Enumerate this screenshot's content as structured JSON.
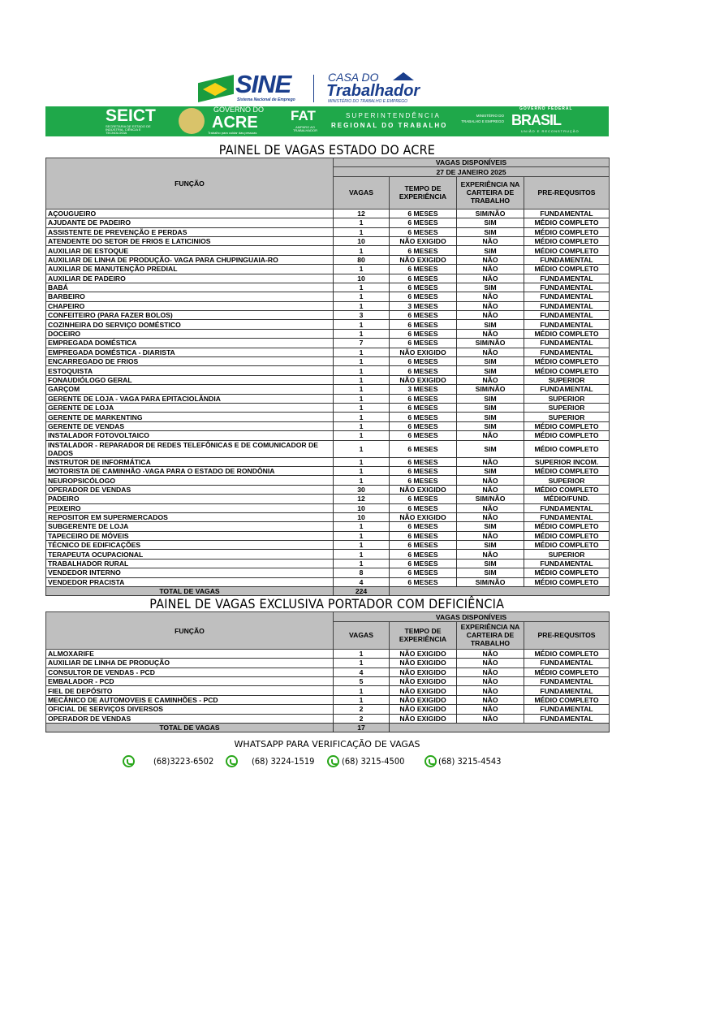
{
  "header": {
    "sine": "SINE",
    "sine_sub": "Sistema Nacional de Emprego",
    "casa": "CASA DO",
    "trabalhador": "Trabalhador",
    "ministerio": "MINISTÉRIO DO TRABALHO E EMPREGO",
    "banner": {
      "seict": "SEICT",
      "seict_sub": "SECRETARIA DE ESTADO DE INDÚSTRIA, CIÊNCIA E TECNOLOGIA",
      "governo": "GOVERNO DO",
      "acre": "ACRE",
      "acre_sub": "Trabalho para cuidar das pessoas",
      "fat": "FAT",
      "fat_sub": "AMPARO AO TRABALHADOR",
      "sup1": "SUPERINTENDÊNCIA",
      "sup2": "REGIONAL DO TRABALHO",
      "mte": "MINISTÉRIO DO TRABALHO E EMPREGO",
      "gov_fed": "GOVERNO FEDERAL",
      "brasil": "BRASIL",
      "brasil_sub": "UNIÃO E RECONSTRUÇÃO"
    },
    "colors": {
      "green": "#1fa84a",
      "blue": "#1a3e8c",
      "header_gray": "#bfbfbf"
    }
  },
  "table1": {
    "title": "PAINEL DE VAGAS ESTADO DO ACRE",
    "vagas_disp": "VAGAS DISPONÍVEIS",
    "date": "27 DE JANEIRO 2025",
    "columns": [
      "FUNÇÃO",
      "VAGAS",
      "TEMPO DE EXPERIÊNCIA",
      "EXPERIÊNCIA NA CARTEIRA DE TRABALHO",
      "PRE-REQUSITOS"
    ],
    "rows": [
      [
        "AÇOUGUEIRO",
        "12",
        "6 MESES",
        "SIM/NÃO",
        "FUNDAMENTAL"
      ],
      [
        "AJUDANTE DE PADEIRO",
        "1",
        "6 MESES",
        "SIM",
        "MÉDIO COMPLETO"
      ],
      [
        "ASSISTENTE DE PREVENÇÃO E PERDAS",
        "1",
        "6 MESES",
        "SIM",
        "MÉDIO COMPLETO"
      ],
      [
        "ATENDENTE DO SETOR DE FRIOS E LATICINIOS",
        "10",
        "NÃO EXIGIDO",
        "NÃO",
        "MÉDIO COMPLETO"
      ],
      [
        "AUXILIAR DE ESTOQUE",
        "1",
        "6 MESES",
        "SIM",
        "MÉDIO COMPLETO"
      ],
      [
        "AUXILIAR DE LINHA DE PRODUÇÃO- VAGA PARA CHUPINGUAIA-RO",
        "80",
        "NÃO EXIGIDO",
        "NÃO",
        "FUNDAMENTAL"
      ],
      [
        "AUXILIAR DE MANUTENÇÃO PREDIAL",
        "1",
        "6 MESES",
        "NÃO",
        "MÉDIO COMPLETO"
      ],
      [
        "AUXILIAR DE PADEIRO",
        "10",
        "6 MESES",
        "NÃO",
        "FUNDAMENTAL"
      ],
      [
        "BABÁ",
        "1",
        "6 MESES",
        "SIM",
        "FUNDAMENTAL"
      ],
      [
        "BARBEIRO",
        "1",
        "6 MESES",
        "NÃO",
        "FUNDAMENTAL"
      ],
      [
        "CHAPEIRO",
        "1",
        "3 MESES",
        "NÃO",
        "FUNDAMENTAL"
      ],
      [
        "CONFEITEIRO (PARA FAZER BOLOS)",
        "3",
        "6 MESES",
        "NÃO",
        "FUNDAMENTAL"
      ],
      [
        "COZINHEIRA DO SERVIÇO DOMÉSTICO",
        "1",
        "6 MESES",
        "SIM",
        "FUNDAMENTAL"
      ],
      [
        "DOCEIRO",
        "1",
        "6 MESES",
        "NÃO",
        "MÉDIO COMPLETO"
      ],
      [
        "EMPREGADA DOMÉSTICA",
        "7",
        "6 MESES",
        "SIM/NÃO",
        "FUNDAMENTAL"
      ],
      [
        "EMPREGADA DOMÉSTICA - DIARISTA",
        "1",
        "NÃO EXIGIDO",
        "NÃO",
        "FUNDAMENTAL"
      ],
      [
        "ENCARREGADO DE FRIOS",
        "1",
        "6 MESES",
        "SIM",
        "MÉDIO COMPLETO"
      ],
      [
        "ESTOQUISTA",
        "1",
        "6 MESES",
        "SIM",
        "MÉDIO COMPLETO"
      ],
      [
        "FONAUDIÓLOGO GERAL",
        "1",
        "NÃO EXIGIDO",
        "NÃO",
        "SUPERIOR"
      ],
      [
        "GARÇOM",
        "1",
        "3 MESES",
        "SIM/NÃO",
        "FUNDAMENTAL"
      ],
      [
        "GERENTE DE LOJA - VAGA PARA EPITACIOLÂNDIA",
        "1",
        "6 MESES",
        "SIM",
        "SUPERIOR"
      ],
      [
        "GERENTE DE LOJA",
        "1",
        "6 MESES",
        "SIM",
        "SUPERIOR"
      ],
      [
        "GERENTE DE MARKENTING",
        "1",
        "6 MESES",
        "SIM",
        "SUPERIOR"
      ],
      [
        "GERENTE DE VENDAS",
        "1",
        "6 MESES",
        "SIM",
        "MÉDIO COMPLETO"
      ],
      [
        "INSTALADOR FOTOVOLTAICO",
        "1",
        "6 MESES",
        "NÃO",
        "MÉDIO COMPLETO"
      ],
      [
        "INSTALADOR - REPARADOR DE REDES TELEFÔNICAS E DE COMUNICADOR DE DADOS",
        "1",
        "6 MESES",
        "SIM",
        "MÉDIO COMPLETO"
      ],
      [
        "INSTRUTOR DE INFORMÁTICA",
        "1",
        "6 MESES",
        "NÃO",
        "SUPERIOR INCOM."
      ],
      [
        "MOTORISTA DE CAMINHÃO -VAGA PARA O ESTADO DE RONDÔNIA",
        "1",
        "6 MESES",
        "SIM",
        "MÉDIO COMPLETO"
      ],
      [
        "NEUROPSICÓLOGO",
        "1",
        "6 MESES",
        "NÃO",
        "SUPERIOR"
      ],
      [
        "OPERADOR DE VENDAS",
        "30",
        "NÃO EXIGIDO",
        "NÃO",
        "MÉDIO COMPLETO"
      ],
      [
        "PADEIRO",
        "12",
        "6 MESES",
        "SIM/NÃO",
        "MÉDIO/FUND."
      ],
      [
        "PEIXEIRO",
        "10",
        "6 MESES",
        "NÃO",
        "FUNDAMENTAL"
      ],
      [
        "REPOSITOR EM SUPERMERCADOS",
        "10",
        "NÃO EXIGIDO",
        "NÃO",
        "FUNDAMENTAL"
      ],
      [
        "SUBGERENTE DE LOJA",
        "1",
        "6 MESES",
        "SIM",
        "MÉDIO COMPLETO"
      ],
      [
        "TAPECEIRO DE MÓVEIS",
        "1",
        "6 MESES",
        "NÃO",
        "MÉDIO COMPLETO"
      ],
      [
        "TÉCNICO DE EDIFICAÇÕES",
        "1",
        "6 MESES",
        "SIM",
        "MÉDIO COMPLETO"
      ],
      [
        "TERAPEUTA OCUPACIONAL",
        "1",
        "6 MESES",
        "NÃO",
        "SUPERIOR"
      ],
      [
        "TRABALHADOR RURAL",
        "1",
        "6 MESES",
        "SIM",
        "FUNDAMENTAL"
      ],
      [
        "VENDEDOR INTERNO",
        "8",
        "6 MESES",
        "SIM",
        "MÉDIO COMPLETO"
      ],
      [
        "VENDEDOR PRACISTA",
        "4",
        "6 MESES",
        "SIM/NÃO",
        "MÉDIO COMPLETO"
      ]
    ],
    "total_label": "TOTAL DE VAGAS",
    "total": "224"
  },
  "table2": {
    "title": "PAINEL DE VAGAS EXCLUSIVA PORTADOR COM DEFICIÊNCIA",
    "vagas_disp": "VAGAS DISPONÍVEIS",
    "columns": [
      "FUNÇÃO",
      "VAGAS",
      "TEMPO DE EXPERIÊNCIA",
      "EXPERIÊNCIA NA CARTEIRA DE TRABALHO",
      "PRE-REQUSITOS"
    ],
    "rows": [
      [
        "ALMOXARIFE",
        "1",
        "NÃO EXIGIDO",
        "NÃO",
        "MÉDIO COMPLETO"
      ],
      [
        "AUXILIAR DE LINHA DE PRODUÇÃO",
        "1",
        "NÃO EXIGIDO",
        "NÃO",
        "FUNDAMENTAL"
      ],
      [
        "CONSULTOR DE VENDAS - PCD",
        "4",
        "NÃO EXIGIDO",
        "NÃO",
        "MÉDIO COMPLETO"
      ],
      [
        "EMBALADOR - PCD",
        "5",
        "NÃO EXIGIDO",
        "NÃO",
        "FUNDAMENTAL"
      ],
      [
        "FIEL DE DEPÓSITO",
        "1",
        "NÃO EXIGIDO",
        "NÃO",
        "FUNDAMENTAL"
      ],
      [
        "MECÂNICO DE AUTOMOVEIS E CAMINHÕES - PCD",
        "1",
        "NÃO EXIGIDO",
        "NÃO",
        "MÉDIO COMPLETO"
      ],
      [
        "OFICIAL DE SERVIÇOS DIVERSOS",
        "2",
        "NÃO EXIGIDO",
        "NÃO",
        "FUNDAMENTAL"
      ],
      [
        "OPERADOR DE VENDAS",
        "2",
        "NÃO EXIGIDO",
        "NÃO",
        "FUNDAMENTAL"
      ]
    ],
    "total_label": "TOTAL DE VAGAS",
    "total": "17"
  },
  "whatsapp": {
    "title": "WHATSAPP PARA VERIFICAÇÃO DE VAGAS",
    "icon": "whatsapp-icon",
    "phones": [
      "(68)3223-6502",
      "(68) 3224-1519",
      "(68) 3215-4500",
      "(68) 3215-4543"
    ]
  }
}
